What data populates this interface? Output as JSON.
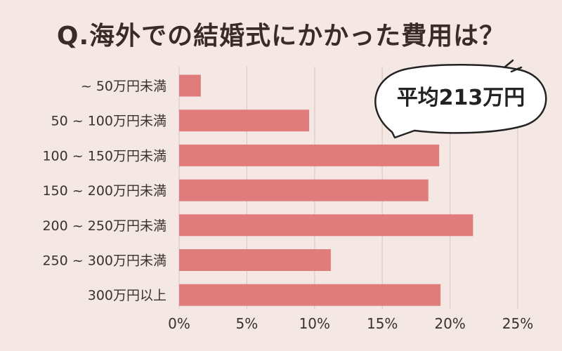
{
  "chart_data": {
    "type": "bar",
    "orientation": "horizontal",
    "title": "Q.海外での結婚式にかかった費用は？",
    "categories": [
      "~ 50万円未満",
      "50 ~ 100万円未満",
      "100 ~ 150万円未満",
      "150 ~ 200万円未満",
      "200 ~ 250万円未満",
      "250 ~ 300万円未満",
      "300万円以上"
    ],
    "values": [
      1.6,
      9.6,
      19.2,
      18.4,
      21.7,
      11.2,
      19.3
    ],
    "xlim": [
      0,
      25
    ],
    "xticks": [
      "0%",
      "5%",
      "10%",
      "15%",
      "20%",
      "25%"
    ],
    "grid": true,
    "bar_color": "#e07c7c",
    "grid_color": "#d9cbc7",
    "annotation": "平均213万円"
  }
}
